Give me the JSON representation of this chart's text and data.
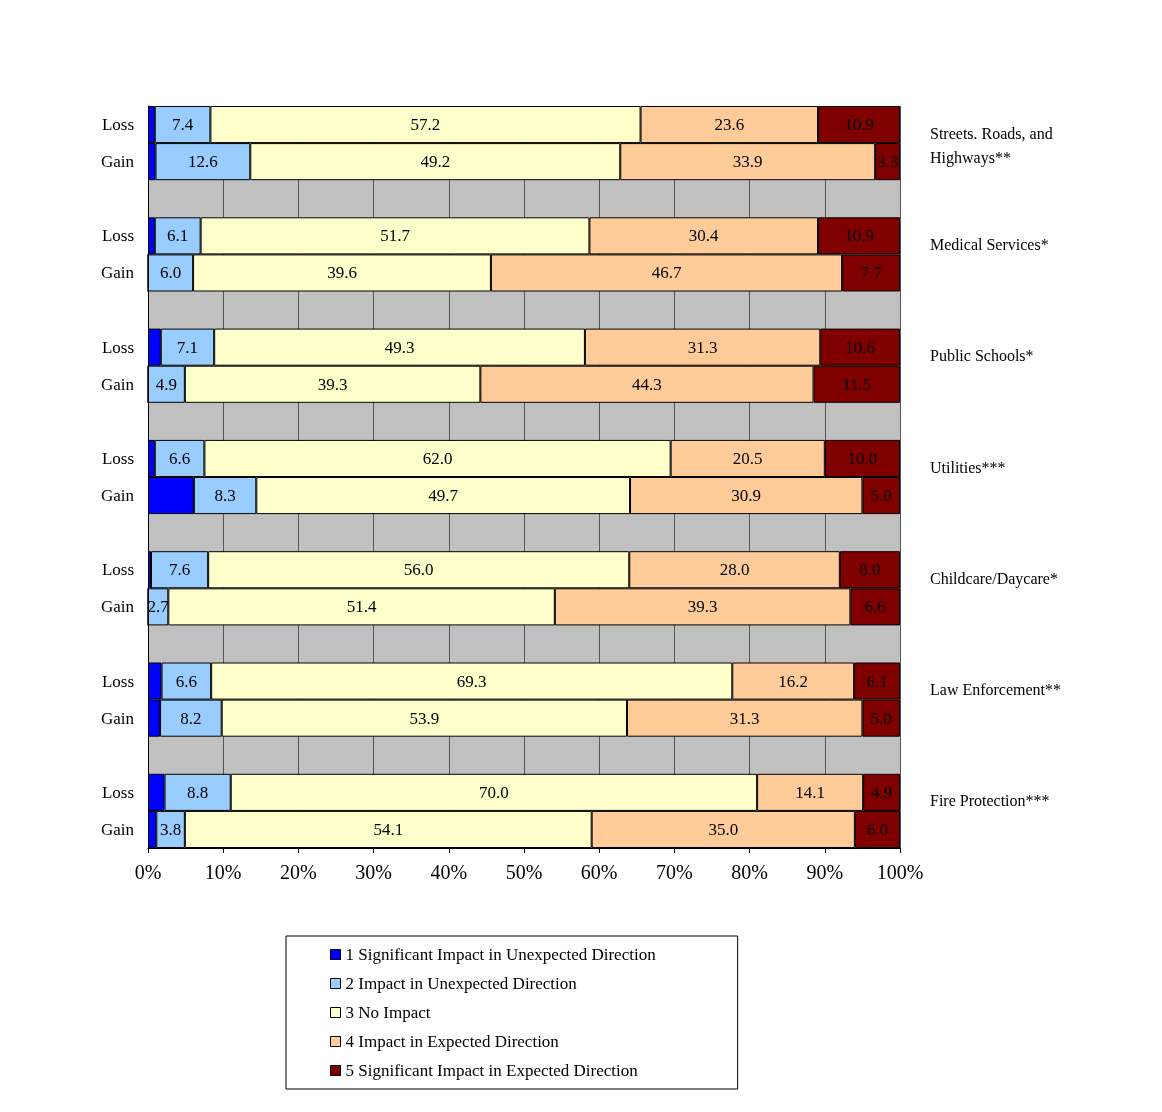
{
  "chart_data": {
    "type": "bar",
    "orientation": "horizontal",
    "stacked": true,
    "categories": [
      "Loss",
      "Gain",
      null,
      "Loss",
      "Gain",
      null,
      "Loss",
      "Gain",
      null,
      "Loss",
      "Gain",
      null,
      "Loss",
      "Gain",
      null,
      "Loss",
      "Gain",
      null,
      "Loss",
      "Gain"
    ],
    "series": [
      {
        "name": "1 Significant Impact in Unexpected Direction",
        "color": "#0000ff",
        "values": [
          0.9,
          1.0,
          null,
          0.9,
          0,
          null,
          1.7,
          0,
          null,
          0.9,
          6.1,
          null,
          0.4,
          0,
          null,
          1.8,
          1.6,
          null,
          2.2,
          1.1
        ],
        "value_labels": [
          null,
          null,
          null,
          null,
          null,
          null,
          null,
          null,
          null,
          null,
          null,
          null,
          null,
          null,
          null,
          null,
          null,
          null,
          null,
          null
        ]
      },
      {
        "name": "2 Impact in Unexpected Direction",
        "color": "#99ccff",
        "values": [
          7.4,
          12.6,
          null,
          6.1,
          6.0,
          null,
          7.1,
          4.9,
          null,
          6.6,
          8.3,
          null,
          7.6,
          2.7,
          null,
          6.6,
          8.2,
          null,
          8.8,
          3.8
        ],
        "value_labels": [
          "7.4",
          "12.6",
          null,
          "6.1",
          "6.0",
          null,
          "7.1",
          "4.9",
          null,
          "6.6",
          "8.3",
          null,
          "7.6",
          "2.7",
          null,
          "6.6",
          "8.2",
          null,
          "8.8",
          "3.8"
        ]
      },
      {
        "name": "3 No Impact",
        "color": "#ffffcc",
        "values": [
          57.2,
          49.2,
          null,
          51.7,
          39.6,
          null,
          49.3,
          39.3,
          null,
          62.0,
          49.7,
          null,
          56.0,
          51.4,
          null,
          69.3,
          53.9,
          null,
          70.0,
          54.1
        ],
        "value_labels": [
          "57.2",
          "49.2",
          null,
          "51.7",
          "39.6",
          null,
          "49.3",
          "39.3",
          null,
          "62.0",
          "49.7",
          null,
          "56.0",
          "51.4",
          null,
          "69.3",
          "53.9",
          null,
          "70.0",
          "54.1"
        ]
      },
      {
        "name": "4 Impact in Expected Direction",
        "color": "#ffcc99",
        "values": [
          23.6,
          33.9,
          null,
          30.4,
          46.7,
          null,
          31.3,
          44.3,
          null,
          20.5,
          30.9,
          null,
          28.0,
          39.3,
          null,
          16.2,
          31.3,
          null,
          14.1,
          35.0
        ],
        "value_labels": [
          "23.6",
          "33.9",
          null,
          "30.4",
          "46.7",
          null,
          "31.3",
          "44.3",
          null,
          "20.5",
          "30.9",
          null,
          "28.0",
          "39.3",
          null,
          "16.2",
          "31.3",
          null,
          "14.1",
          "35.0"
        ]
      },
      {
        "name": "5 Significant Impact in Expected Direction",
        "color": "#800000",
        "values": [
          10.9,
          3.3,
          null,
          10.9,
          7.7,
          null,
          10.6,
          11.5,
          null,
          10.0,
          5.0,
          null,
          8.0,
          6.6,
          null,
          6.1,
          5.0,
          null,
          4.9,
          6.0
        ],
        "value_labels": [
          "10.9",
          "3.3",
          null,
          "10.9",
          "7.7",
          null,
          "10.6",
          "11.5",
          null,
          "10.0",
          "5.0",
          null,
          "8.0",
          "6.6",
          null,
          "6.1",
          "5.0",
          null,
          "4.9",
          "6.0"
        ]
      }
    ],
    "xlim": [
      0,
      100
    ],
    "xticks": [
      {
        "value": 0,
        "label": "0%"
      },
      {
        "value": 10,
        "label": "10%"
      },
      {
        "value": 20,
        "label": "20%"
      },
      {
        "value": 30,
        "label": "30%"
      },
      {
        "value": 40,
        "label": "40%"
      },
      {
        "value": 50,
        "label": "50%"
      },
      {
        "value": 60,
        "label": "60%"
      },
      {
        "value": 70,
        "label": "70%"
      },
      {
        "value": 80,
        "label": "80%"
      },
      {
        "value": 90,
        "label": "90%"
      },
      {
        "value": 100,
        "label": "100%"
      }
    ],
    "annotations": [
      "Streets. Roads, and Highways**",
      "Medical Services*",
      "Public Schools*",
      "Utilities***",
      "Childcare/Daycare*",
      "Law Enforcement**",
      "Fire Protection***"
    ],
    "grid": "x",
    "legend": "bottom"
  }
}
